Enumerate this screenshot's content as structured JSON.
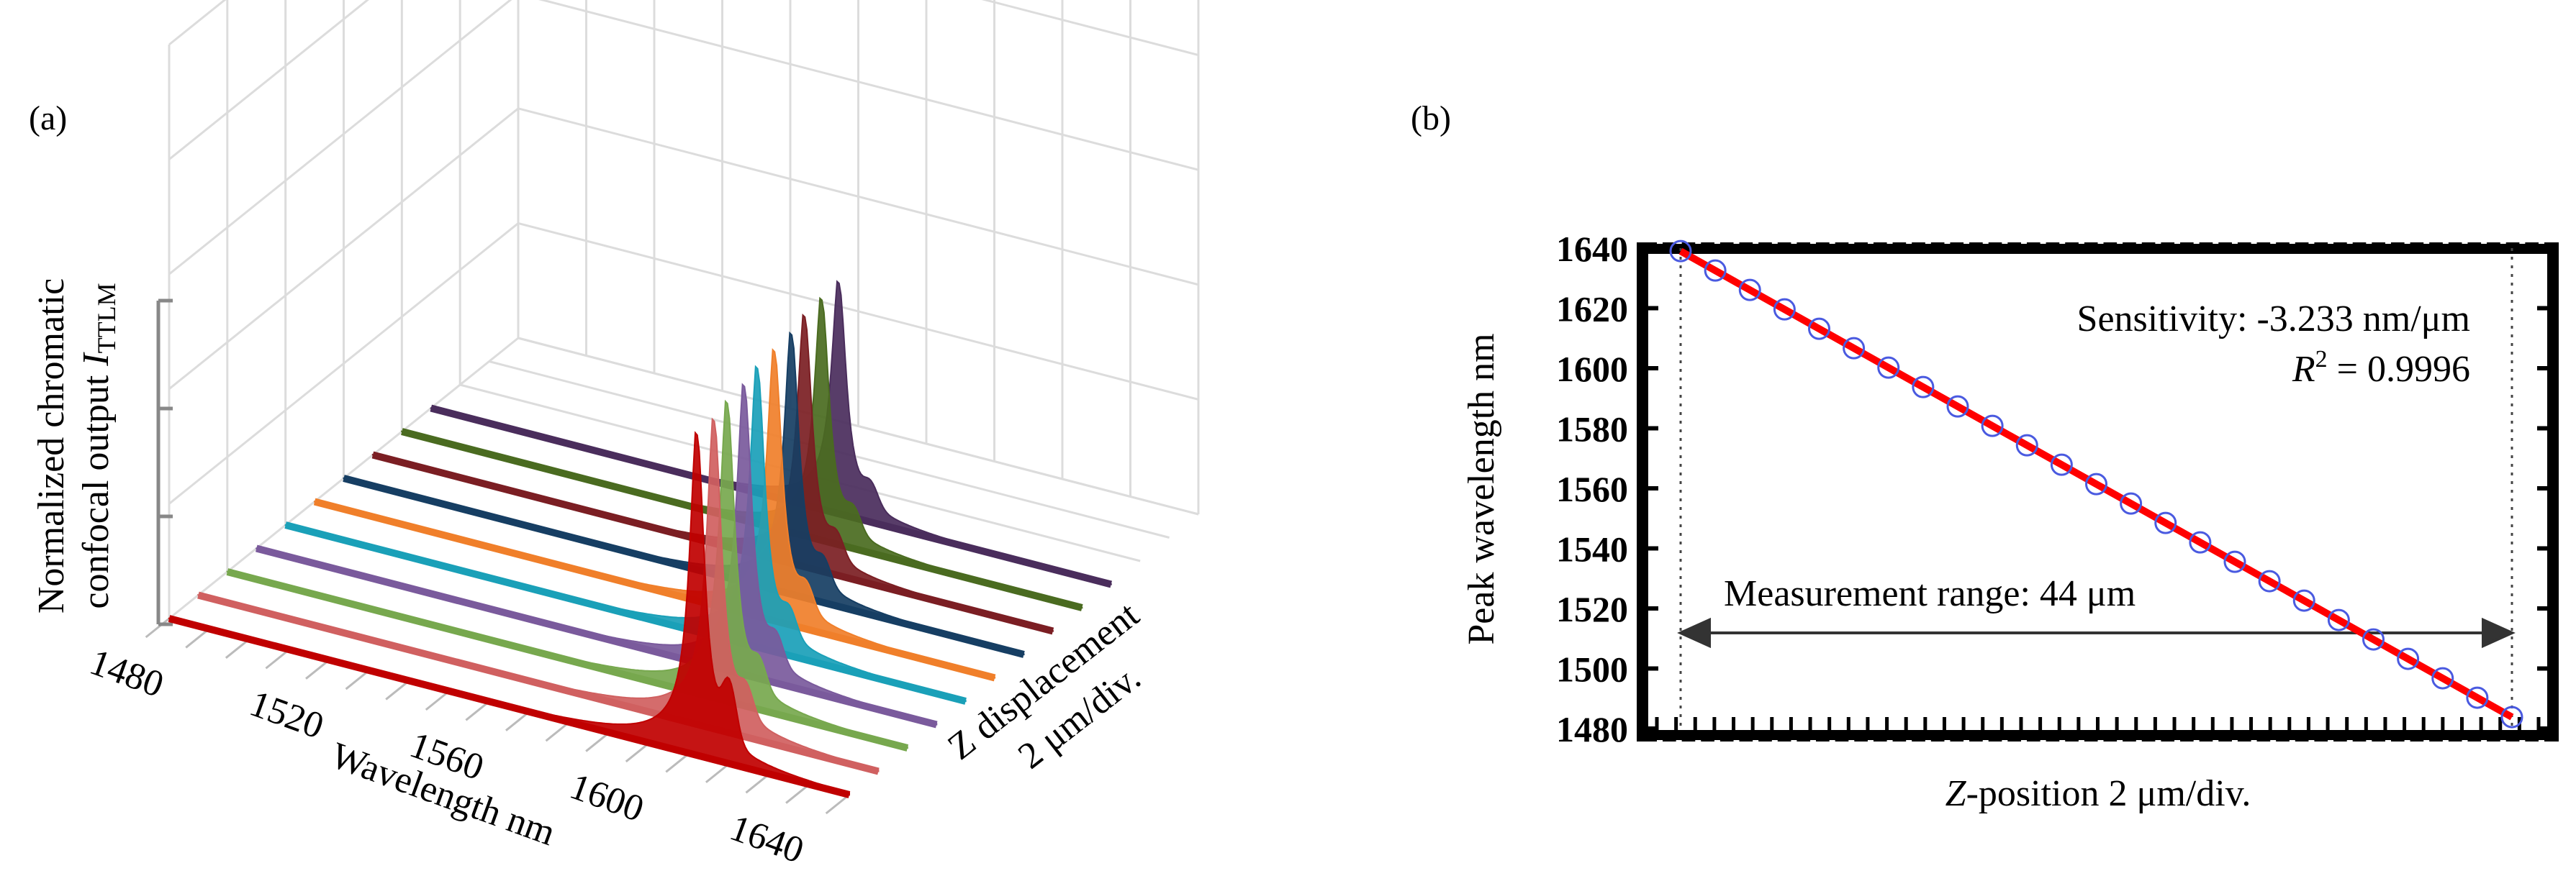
{
  "panel_a": {
    "label": "(a)",
    "ylabel_line1": "Normalized chromatic",
    "ylabel_line2_prefix": "confocal output ",
    "ylabel_symbol": "I",
    "ylabel_sub": "TTLM",
    "xlabel": "Wavelength  nm",
    "zlabel_line1": "Z displacement",
    "zlabel_line2": "2 μm/div."
  },
  "panel_b": {
    "label": "(b)",
    "ylabel": "Peak wavelength  nm",
    "xlabel_italic": "Z",
    "xlabel_rest": "-position 2 μm/div.",
    "sensitivity": "Sensitivity: -3.233 nm/μm",
    "r2_symbol": "R",
    "r2_sup": "2",
    "r2_value": " = 0.9996",
    "range_label": "Measurement range: 44 μm"
  },
  "chart_data": [
    {
      "type": "area",
      "panel": "(a)",
      "xlabel": "Wavelength  nm",
      "ylabel": "Normalized chromatic confocal output I_TTLM",
      "zlabel": "Z displacement 2 μm/div.",
      "x_ticks": [
        1480,
        1520,
        1560,
        1600,
        1640
      ],
      "xlim": [
        1480,
        1650
      ],
      "series": [
        {
          "color": "#c00000",
          "peak_wavelength": 1612,
          "peak_height": 1.0
        },
        {
          "color": "#d06060",
          "peak_wavelength": 1609,
          "peak_height": 0.96
        },
        {
          "color": "#77a84e",
          "peak_wavelength": 1605,
          "peak_height": 0.93
        },
        {
          "color": "#7a5a9c",
          "peak_wavelength": 1602,
          "peak_height": 0.9
        },
        {
          "color": "#1aa0b8",
          "peak_wavelength": 1598,
          "peak_height": 0.87
        },
        {
          "color": "#f07f2a",
          "peak_wavelength": 1595,
          "peak_height": 0.84
        },
        {
          "color": "#163e63",
          "peak_wavelength": 1592,
          "peak_height": 0.81
        },
        {
          "color": "#7b1e23",
          "peak_wavelength": 1588,
          "peak_height": 0.78
        },
        {
          "color": "#4a6b20",
          "peak_wavelength": 1585,
          "peak_height": 0.75
        },
        {
          "color": "#4a2d5c",
          "peak_wavelength": 1582,
          "peak_height": 0.72
        }
      ]
    },
    {
      "type": "scatter",
      "panel": "(b)",
      "xlabel": "Z-position 2 μm/div.",
      "ylabel": "Peak wavelength  nm",
      "ylim": [
        1480,
        1640
      ],
      "y_ticks": [
        1480,
        1500,
        1520,
        1540,
        1560,
        1580,
        1600,
        1620,
        1640
      ],
      "x_units_per_div_um": 2,
      "z_positions_um": [
        0,
        2,
        4,
        6,
        8,
        10,
        12,
        14,
        16,
        18,
        20,
        22,
        24,
        26,
        28,
        30,
        32,
        34,
        36,
        38,
        40,
        42,
        44,
        46,
        48
      ],
      "peak_wavelengths_nm": [
        1639.0,
        1632.5,
        1626.0,
        1620.0,
        1613.5,
        1607.0,
        1600.5,
        1594.0,
        1587.5,
        1581.0,
        1574.5,
        1568.0,
        1561.5,
        1555.0,
        1548.5,
        1542.0,
        1535.5,
        1529.0,
        1522.5,
        1516.0,
        1509.5,
        1503.0,
        1497.0,
        1502.0,
        1498.0
      ],
      "fit": {
        "slope_nm_per_um": -3.233,
        "r_squared": 0.9996,
        "color": "#ff0000"
      },
      "measurement_range_um": 44,
      "marker_color": "#4a5ae0"
    }
  ]
}
